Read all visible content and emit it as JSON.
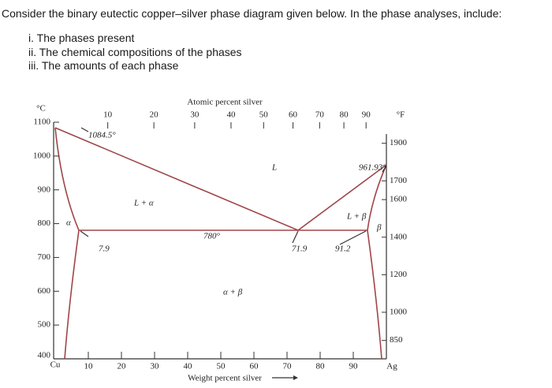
{
  "question": "Consider the binary eutectic copper–silver phase diagram given below. In the phase analyses, include:",
  "items": [
    "i. The phases present",
    "ii. The chemical compositions of the phases",
    "iii. The amounts of each phase"
  ],
  "diagram": {
    "top_axis_title": "Atomic percent silver",
    "top_ticks": [
      10,
      20,
      30,
      40,
      50,
      60,
      70,
      80,
      90
    ],
    "left_unit": "°C",
    "left_ticks": [
      1100,
      1000,
      900,
      800,
      700,
      600,
      500,
      400
    ],
    "right_unit": "°F",
    "right_ticks": [
      1900,
      1700,
      1600,
      1400,
      1200,
      1000,
      850
    ],
    "bottom_ticks": [
      10,
      20,
      30,
      40,
      50,
      60,
      70,
      80,
      90
    ],
    "bottom_left": "Cu",
    "bottom_right": "Ag",
    "bottom_axis_title": "Weight percent silver",
    "annotations": [
      "1084.5°",
      "L",
      "961.93°",
      "L + α",
      "L + β",
      "β",
      "780°",
      "7.9",
      "71.9",
      "91.2",
      "α + β",
      "α"
    ]
  }
}
